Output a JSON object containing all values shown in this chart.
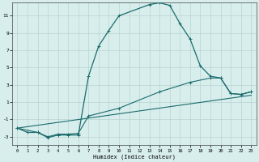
{
  "xlabel": "Humidex (Indice chaleur)",
  "bg_color": "#d8eeed",
  "grid_color": "#b8d4d0",
  "line_color": "#1a6b6b",
  "xlim": [
    -0.5,
    23.5
  ],
  "ylim": [
    -4.0,
    12.5
  ],
  "yticks": [
    -3,
    -1,
    1,
    3,
    5,
    7,
    9,
    11
  ],
  "xticks": [
    0,
    1,
    2,
    3,
    4,
    5,
    6,
    7,
    8,
    9,
    10,
    11,
    12,
    13,
    14,
    15,
    16,
    17,
    18,
    19,
    20,
    21,
    22,
    23
  ],
  "line1_x": [
    0,
    1,
    2,
    3,
    4,
    5,
    6,
    7,
    8,
    9,
    10,
    13,
    14,
    15,
    16,
    17,
    18,
    19,
    20,
    21,
    22,
    23
  ],
  "line1_y": [
    -2.0,
    -2.5,
    -2.5,
    -3.1,
    -2.8,
    -2.8,
    -2.8,
    4.0,
    7.5,
    9.3,
    11.0,
    12.3,
    12.5,
    12.2,
    10.1,
    8.3,
    5.2,
    4.0,
    3.8,
    2.0,
    1.9,
    2.2
  ],
  "line2_x": [
    0,
    2,
    3,
    4,
    5,
    6,
    7,
    10,
    14,
    17,
    19,
    20,
    21,
    22,
    23
  ],
  "line2_y": [
    -2.0,
    -2.5,
    -3.0,
    -2.7,
    -2.7,
    -2.6,
    -0.6,
    0.3,
    2.2,
    3.3,
    3.8,
    3.8,
    2.0,
    1.9,
    2.2
  ],
  "line3_x": [
    0,
    23
  ],
  "line3_y": [
    -2.0,
    1.8
  ]
}
